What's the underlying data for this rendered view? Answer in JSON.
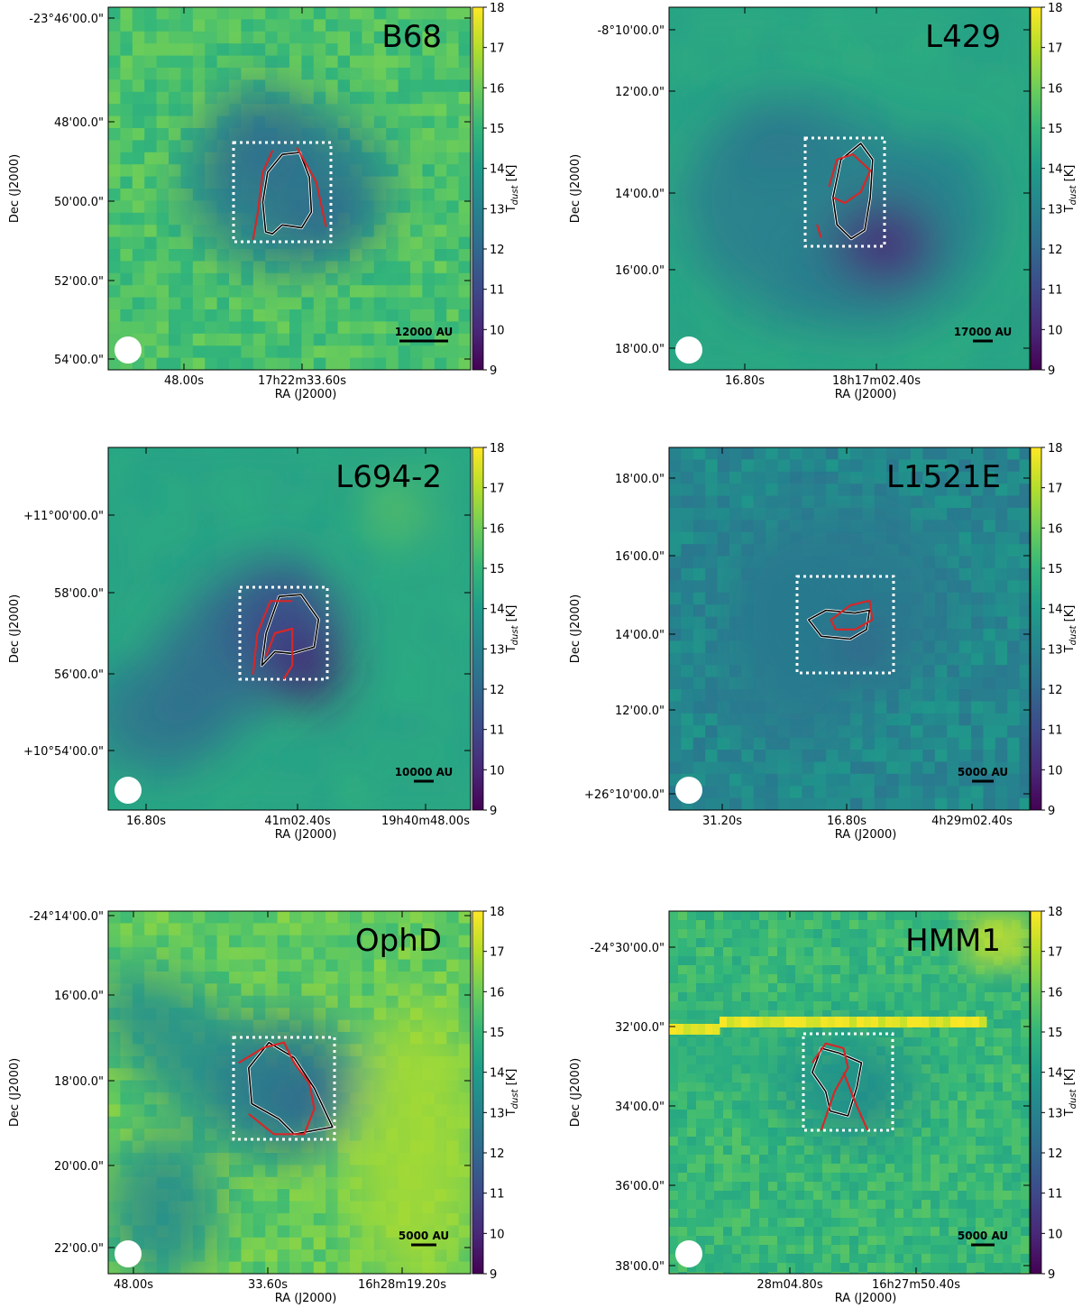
{
  "colorbar": {
    "label": "T",
    "label_sub": "dust",
    "label_unit": " [K]",
    "range": [
      9,
      18
    ],
    "ticks": [
      "18",
      "17",
      "16",
      "15",
      "14",
      "13",
      "12",
      "11",
      "10",
      "9"
    ],
    "colormap": "viridis",
    "colors": [
      "#440154",
      "#482878",
      "#3e4989",
      "#31688e",
      "#26828e",
      "#1f9e89",
      "#35b779",
      "#6ece58",
      "#b5de2b",
      "#fde725"
    ]
  },
  "chart_data": [
    {
      "type": "heatmap",
      "title": "B68",
      "xlabel": "RA (J2000)",
      "ylabel": "Dec (J2000)",
      "x_ticks": [
        "48.00s",
        "17h22m33.60s"
      ],
      "y_ticks": [
        "-23°46'00.0\"",
        "48'00.0\"",
        "50'00.0\"",
        "52'00.0\"",
        "54'00.0\""
      ],
      "scalebar": "12000 AU",
      "background_tdust": 15.4,
      "core_min_tdust": 12.0,
      "legend_beam": "white circle bottom-left",
      "box": "white dotted"
    },
    {
      "type": "heatmap",
      "title": "L429",
      "xlabel": "RA (J2000)",
      "ylabel": "Dec (J2000)",
      "x_ticks": [
        "16.80s",
        "18h17m02.40s"
      ],
      "y_ticks": [
        "-8°10'00.0\"",
        "12'00.0\"",
        "14'00.0\"",
        "16'00.0\"",
        "18'00.0\""
      ],
      "scalebar": "17000 AU",
      "background_tdust": 14.3,
      "core_min_tdust": 10.0,
      "legend_beam": "white circle bottom-left",
      "box": "white dotted"
    },
    {
      "type": "heatmap",
      "title": "L694-2",
      "xlabel": "RA (J2000)",
      "ylabel": "Dec (J2000)",
      "x_ticks": [
        "16.80s",
        "41m02.40s",
        "19h40m48.00s"
      ],
      "y_ticks": [
        "+11°00'00.0\"",
        "58'00.0\"",
        "56'00.0\"",
        "+10°54'00.0\""
      ],
      "scalebar": "10000 AU",
      "background_tdust": 14.3,
      "core_min_tdust": 9.8,
      "legend_beam": "white circle bottom-left",
      "box": "white dotted"
    },
    {
      "type": "heatmap",
      "title": "L1521E",
      "xlabel": "RA (J2000)",
      "ylabel": "Dec (J2000)",
      "x_ticks": [
        "31.20s",
        "16.80s",
        "4h29m02.40s"
      ],
      "y_ticks": [
        "18'00.0\"",
        "16'00.0\"",
        "14'00.0\"",
        "12'00.0\"",
        "+26°10'00.0\""
      ],
      "scalebar": "5000 AU",
      "background_tdust": 13.2,
      "core_min_tdust": 11.0,
      "legend_beam": "white circle bottom-left",
      "box": "white dotted"
    },
    {
      "type": "heatmap",
      "title": "OphD",
      "xlabel": "RA (J2000)",
      "ylabel": "Dec (J2000)",
      "x_ticks": [
        "48.00s",
        "33.60s",
        "16h28m19.20s"
      ],
      "y_ticks": [
        "-24°14'00.0\"",
        "16'00.0\"",
        "18'00.0\"",
        "20'00.0\"",
        "22'00.0\""
      ],
      "scalebar": "5000 AU",
      "background_tdust": 15.8,
      "core_min_tdust": 11.8,
      "legend_beam": "white circle bottom-left",
      "box": "white dotted"
    },
    {
      "type": "heatmap",
      "title": "HMM1",
      "xlabel": "RA (J2000)",
      "ylabel": "Dec (J2000)",
      "x_ticks": [
        "28m04.80s",
        "16h27m50.40s"
      ],
      "y_ticks": [
        "-24°30'00.0\"",
        "32'00.0\"",
        "34'00.0\"",
        "36'00.0\"",
        "38'00.0\""
      ],
      "scalebar": "5000 AU",
      "background_tdust": 15.0,
      "core_min_tdust": 12.8,
      "legend_beam": "white circle bottom-left",
      "box": "white dotted"
    }
  ]
}
